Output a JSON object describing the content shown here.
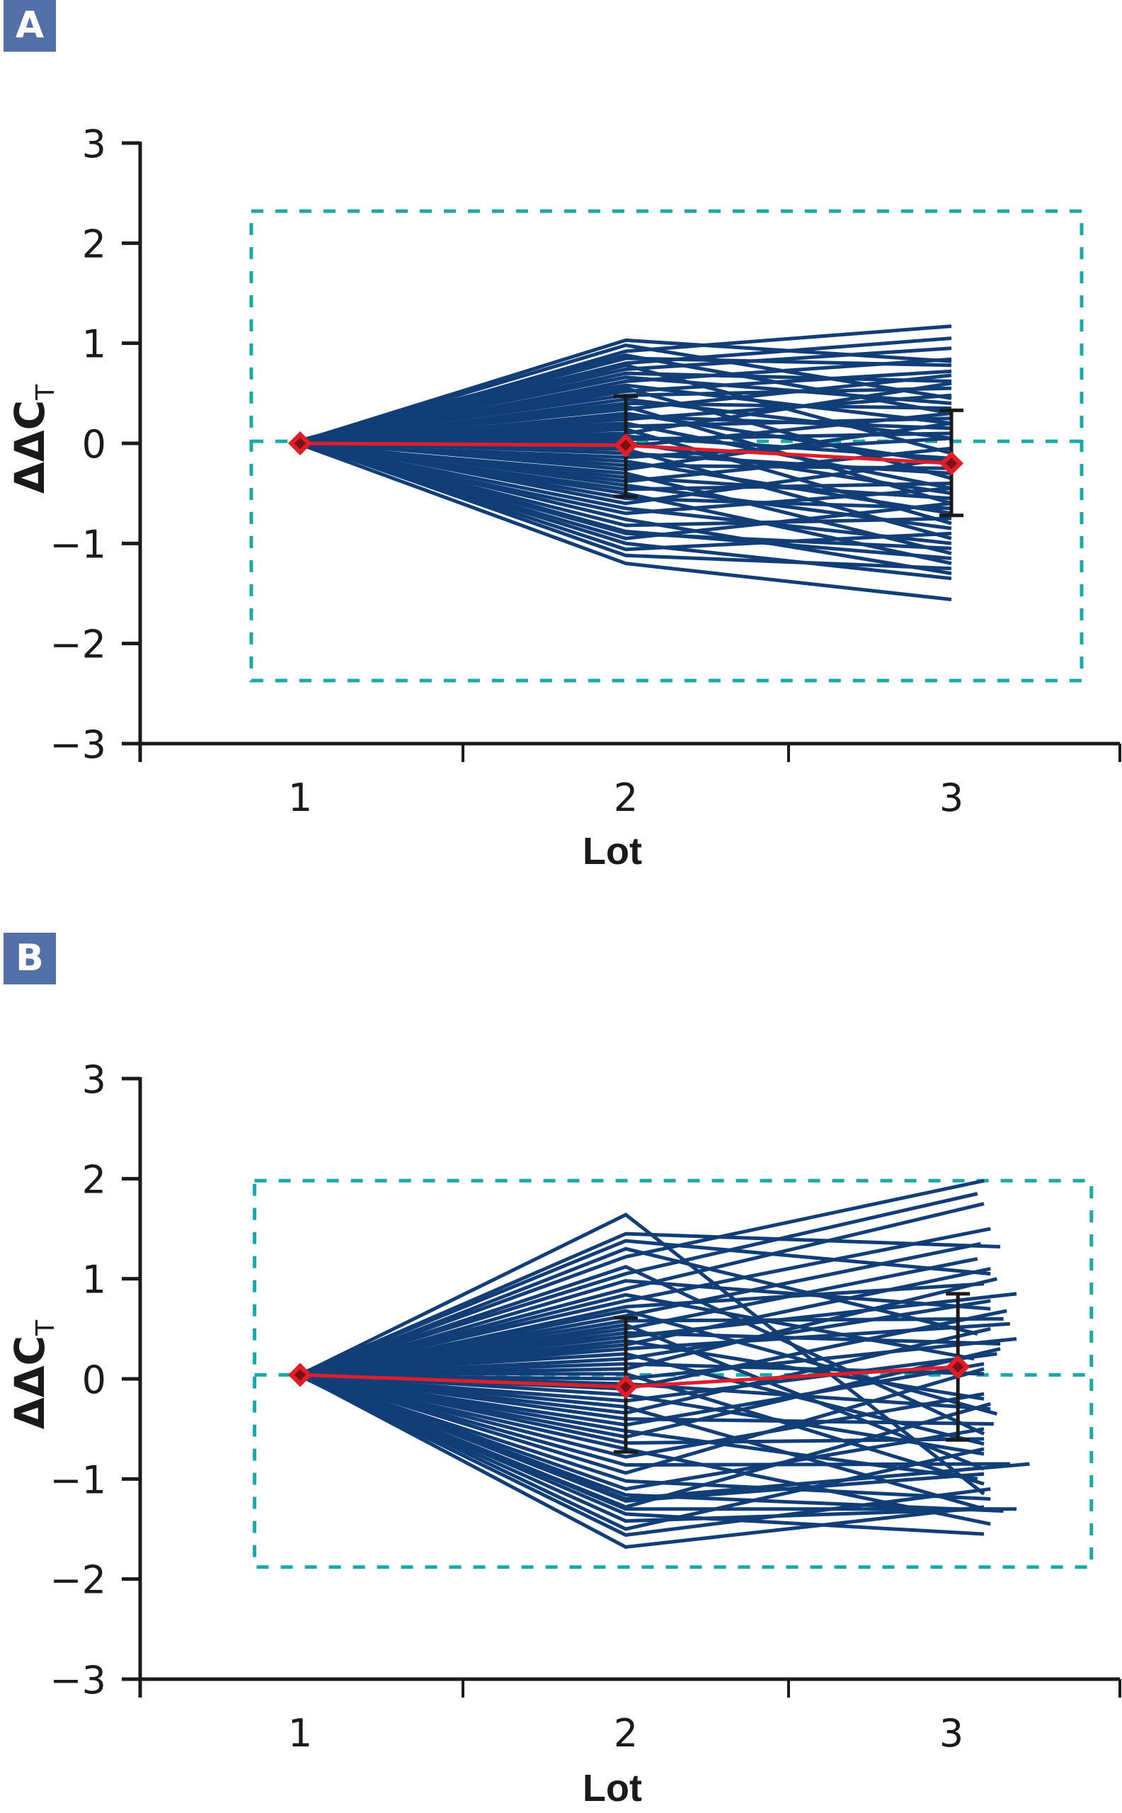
{
  "colors": {
    "badge": "#5470a8",
    "series_line": "#123e78",
    "mean_line": "#e01e2a",
    "mean_marker_inner": "#7a1018",
    "error_bar": "#1a1a1a",
    "reference_box": "#1aa8a8",
    "axis": "#1a1a1a"
  },
  "chart_data": [
    {
      "panel_label": "A",
      "type": "line",
      "xlabel": "Lot",
      "ylabel_main": "ΔΔC",
      "ylabel_sub": "T",
      "x_ticks": [
        1,
        2,
        3
      ],
      "x_tick_labels": [
        "1",
        "2",
        "3"
      ],
      "y_ticks": [
        3,
        2,
        1,
        0,
        -1,
        -2,
        -3
      ],
      "y_tick_labels": [
        "3",
        "2",
        "1",
        "0",
        "−1",
        "−2",
        "−3"
      ],
      "xlim": [
        0.5,
        3.5
      ],
      "ylim": [
        -3,
        3
      ],
      "grid": false,
      "reference_box": {
        "x": [
          0.85,
          3.4
        ],
        "y": [
          -2.37,
          2.32
        ],
        "center_y": 0.02
      },
      "mean": {
        "x": [
          1,
          2,
          3
        ],
        "y": [
          0,
          -0.02,
          -0.2
        ]
      },
      "error_bars": [
        {
          "x": 2,
          "low": -0.53,
          "high": 0.47
        },
        {
          "x": 3,
          "low": -0.72,
          "high": 0.33
        }
      ],
      "series": [
        [
          0.02,
          1.03,
          0.82
        ],
        [
          0.01,
          0.98,
          0.45
        ],
        [
          -0.02,
          0.92,
          1.17
        ],
        [
          0.03,
          0.88,
          0.3
        ],
        [
          0,
          0.85,
          0.78
        ],
        [
          0.01,
          0.8,
          1.05
        ],
        [
          -0.01,
          0.78,
          -0.1
        ],
        [
          0.02,
          0.74,
          0.95
        ],
        [
          0,
          0.7,
          0.62
        ],
        [
          0.01,
          0.66,
          0.4
        ],
        [
          -0.02,
          0.62,
          0.84
        ],
        [
          0.03,
          0.58,
          0.2
        ],
        [
          0,
          0.55,
          -0.35
        ],
        [
          0.01,
          0.52,
          0.72
        ],
        [
          0.02,
          0.48,
          0.55
        ],
        [
          -0.01,
          0.44,
          0.05
        ],
        [
          0,
          0.4,
          0.35
        ],
        [
          0.02,
          0.37,
          -0.6
        ],
        [
          0.01,
          0.34,
          0.68
        ],
        [
          -0.02,
          0.3,
          -0.2
        ],
        [
          0,
          0.27,
          0.15
        ],
        [
          0.01,
          0.24,
          0.48
        ],
        [
          0.02,
          0.2,
          -0.45
        ],
        [
          -0.01,
          0.17,
          0.25
        ],
        [
          0,
          0.14,
          -0.8
        ],
        [
          0.01,
          0.1,
          0.6
        ],
        [
          0.03,
          0.07,
          -0.15
        ],
        [
          0,
          0.04,
          0.1
        ],
        [
          -0.02,
          0.01,
          -0.5
        ],
        [
          0.01,
          -0.03,
          0.3
        ],
        [
          0,
          -0.06,
          -0.95
        ],
        [
          0.02,
          -0.1,
          -0.3
        ],
        [
          -0.01,
          -0.14,
          0.05
        ],
        [
          0,
          -0.18,
          -0.7
        ],
        [
          0.01,
          -0.22,
          -0.25
        ],
        [
          0.02,
          -0.26,
          0.2
        ],
        [
          -0.02,
          -0.3,
          -1.1
        ],
        [
          0,
          -0.34,
          -0.55
        ],
        [
          0.01,
          -0.38,
          -0.05
        ],
        [
          0.02,
          -0.42,
          -0.85
        ],
        [
          -0.01,
          -0.46,
          -0.4
        ],
        [
          0,
          -0.5,
          -1.2
        ],
        [
          0.01,
          -0.55,
          -0.65
        ],
        [
          0.03,
          -0.6,
          -0.15
        ],
        [
          0,
          -0.65,
          -1.0
        ],
        [
          -0.02,
          -0.7,
          -0.45
        ],
        [
          0.01,
          -0.76,
          -1.3
        ],
        [
          0,
          -0.82,
          -0.75
        ],
        [
          0.02,
          -0.88,
          -1.15
        ],
        [
          -0.01,
          -0.95,
          -0.6
        ],
        [
          0,
          -1.0,
          -1.35
        ],
        [
          0.01,
          -1.06,
          -0.9
        ],
        [
          0.02,
          -1.12,
          -1.25
        ],
        [
          -0.01,
          -1.2,
          -1.56
        ],
        [
          0,
          -0.9,
          -1.05
        ]
      ]
    },
    {
      "panel_label": "B",
      "type": "line",
      "xlabel": "Lot",
      "ylabel_main": "ΔΔC",
      "ylabel_sub": "T",
      "x_ticks": [
        1,
        2,
        3
      ],
      "x_tick_labels": [
        "1",
        "2",
        "3"
      ],
      "y_ticks": [
        3,
        2,
        1,
        0,
        -1,
        -2,
        -3
      ],
      "y_tick_labels": [
        "3",
        "2",
        "1",
        "0",
        "−1",
        "−2",
        "−3"
      ],
      "xlim": [
        0.5,
        3.5
      ],
      "ylim": [
        -3,
        3
      ],
      "grid": false,
      "reference_box": {
        "x": [
          0.86,
          3.43
        ],
        "y": [
          -1.88,
          1.98
        ],
        "center_y": 0.04
      },
      "mean": {
        "x": [
          1,
          2,
          3.02
        ],
        "y": [
          0.04,
          -0.08,
          0.12
        ]
      },
      "error_bars": [
        {
          "x": 2,
          "low": -0.73,
          "high": 0.61
        },
        {
          "x": 3.02,
          "low": -0.61,
          "high": 0.85
        }
      ],
      "series": [
        [
          0.04,
          1.64,
          -1.15,
          3.1
        ],
        [
          0.04,
          1.45,
          1.32,
          3.15
        ],
        [
          0.05,
          1.38,
          1.05,
          3.12
        ],
        [
          0.03,
          1.3,
          0.45,
          3.08
        ],
        [
          0.04,
          1.22,
          1.98,
          3.1
        ],
        [
          0.04,
          1.12,
          -0.55,
          3.1
        ],
        [
          0.05,
          1.05,
          1.85,
          3.08
        ],
        [
          0.03,
          0.98,
          0.7,
          3.12
        ],
        [
          0.04,
          0.9,
          1.75,
          3.1
        ],
        [
          0.04,
          0.84,
          0.2,
          3.07
        ],
        [
          0.05,
          0.78,
          1.5,
          3.12
        ],
        [
          0.03,
          0.72,
          0.95,
          3.1
        ],
        [
          0.04,
          0.68,
          -0.35,
          3.14
        ],
        [
          0.04,
          0.63,
          1.35,
          3.09
        ],
        [
          0.05,
          0.58,
          0.6,
          3.16
        ],
        [
          0.03,
          0.54,
          -0.9,
          3.1
        ],
        [
          0.04,
          0.5,
          1.2,
          3.08
        ],
        [
          0.04,
          0.46,
          0.35,
          3.15
        ],
        [
          0.05,
          0.42,
          0.85,
          3.2
        ],
        [
          0.03,
          0.38,
          -0.2,
          3.1
        ],
        [
          0.04,
          0.34,
          1.1,
          3.12
        ],
        [
          0.04,
          0.3,
          0.55,
          3.18
        ],
        [
          0.05,
          0.25,
          -0.65,
          3.1
        ],
        [
          0.03,
          0.2,
          0.78,
          3.12
        ],
        [
          0.04,
          0.15,
          0.05,
          3.1
        ],
        [
          0.04,
          0.1,
          1.0,
          3.14
        ],
        [
          0.05,
          0.05,
          -1.05,
          3.1
        ],
        [
          0.03,
          0.0,
          0.4,
          3.2
        ],
        [
          0.04,
          -0.05,
          -0.3,
          3.12
        ],
        [
          0.04,
          -0.1,
          0.68,
          3.17
        ],
        [
          0.05,
          -0.16,
          -0.75,
          3.1
        ],
        [
          0.03,
          -0.22,
          0.25,
          3.14
        ],
        [
          0.04,
          -0.28,
          -1.3,
          3.1
        ],
        [
          0.04,
          -0.34,
          0.5,
          3.12
        ],
        [
          0.05,
          -0.4,
          -0.45,
          3.13
        ],
        [
          0.03,
          -0.46,
          0.15,
          3.1
        ],
        [
          0.04,
          -0.52,
          -1.0,
          3.08
        ],
        [
          0.04,
          -0.58,
          0.3,
          3.15
        ],
        [
          0.05,
          -0.64,
          -0.6,
          3.1
        ],
        [
          0.03,
          -0.7,
          -1.45,
          3.12
        ],
        [
          0.04,
          -0.78,
          -0.15,
          3.1
        ],
        [
          0.04,
          -0.86,
          -0.85,
          3.18
        ],
        [
          0.05,
          -0.94,
          0.1,
          3.1
        ],
        [
          0.03,
          -1.02,
          -1.2,
          3.12
        ],
        [
          0.04,
          -1.1,
          -0.5,
          3.1
        ],
        [
          0.04,
          -1.16,
          -1.32,
          3.16
        ],
        [
          0.05,
          -1.22,
          -0.95,
          3.1
        ],
        [
          0.03,
          -1.28,
          -0.25,
          3.12
        ],
        [
          0.04,
          -1.35,
          -1.55,
          3.1
        ],
        [
          0.04,
          -1.42,
          -1.3,
          3.12
        ],
        [
          0.05,
          -1.5,
          -0.7,
          3.1
        ],
        [
          0.03,
          -1.56,
          -1.1,
          3.12
        ],
        [
          0.04,
          -1.68,
          -1.28,
          3.1
        ],
        [
          0.04,
          -1.2,
          -0.85,
          3.24
        ],
        [
          0.04,
          -1.3,
          -1.3,
          3.2
        ]
      ]
    }
  ]
}
